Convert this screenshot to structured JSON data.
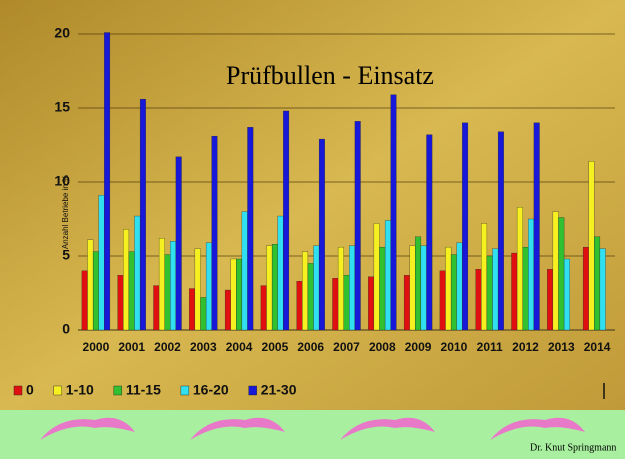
{
  "chart_data": {
    "type": "bar",
    "title": "Prüfbullen - Einsatz",
    "y_label": "Anzahl Betriebe in %",
    "categories": [
      "2000",
      "2001",
      "2002",
      "2003",
      "2004",
      "2005",
      "2006",
      "2007",
      "2008",
      "2009",
      "2010",
      "2011",
      "2012",
      "2013",
      "2014"
    ],
    "series": [
      {
        "name": "0",
        "color": "#e01010",
        "values": [
          4.0,
          3.7,
          3.0,
          2.8,
          2.7,
          3.0,
          3.3,
          3.5,
          3.6,
          3.7,
          4.0,
          4.1,
          5.2,
          4.1,
          5.6
        ]
      },
      {
        "name": "1-10",
        "color": "#f6f020",
        "values": [
          6.1,
          6.8,
          6.2,
          5.5,
          4.8,
          5.7,
          5.3,
          5.6,
          7.2,
          5.7,
          5.6,
          7.2,
          8.3,
          8.0,
          11.4
        ]
      },
      {
        "name": "11-15",
        "color": "#30c030",
        "values": [
          5.3,
          5.3,
          5.1,
          2.2,
          4.8,
          5.8,
          4.5,
          3.7,
          5.6,
          6.3,
          5.1,
          5.0,
          5.6,
          7.6,
          6.3
        ]
      },
      {
        "name": "16-20",
        "color": "#30e0f0",
        "values": [
          9.1,
          7.7,
          6.0,
          5.9,
          8.0,
          7.7,
          5.7,
          5.7,
          7.4,
          5.7,
          5.9,
          5.5,
          7.5,
          4.8,
          5.5
        ]
      },
      {
        "name": "21-30",
        "color": "#1818d8",
        "values": [
          20.1,
          15.6,
          11.7,
          13.1,
          13.7,
          14.8,
          12.9,
          14.1,
          15.9,
          13.2,
          14.0,
          13.4,
          14.0,
          null,
          null
        ]
      }
    ],
    "ylim": [
      0,
      20
    ],
    "yticks": [
      0,
      5,
      10,
      15,
      20
    ],
    "grid": true,
    "footer": "Dr. Knut Springmann"
  }
}
